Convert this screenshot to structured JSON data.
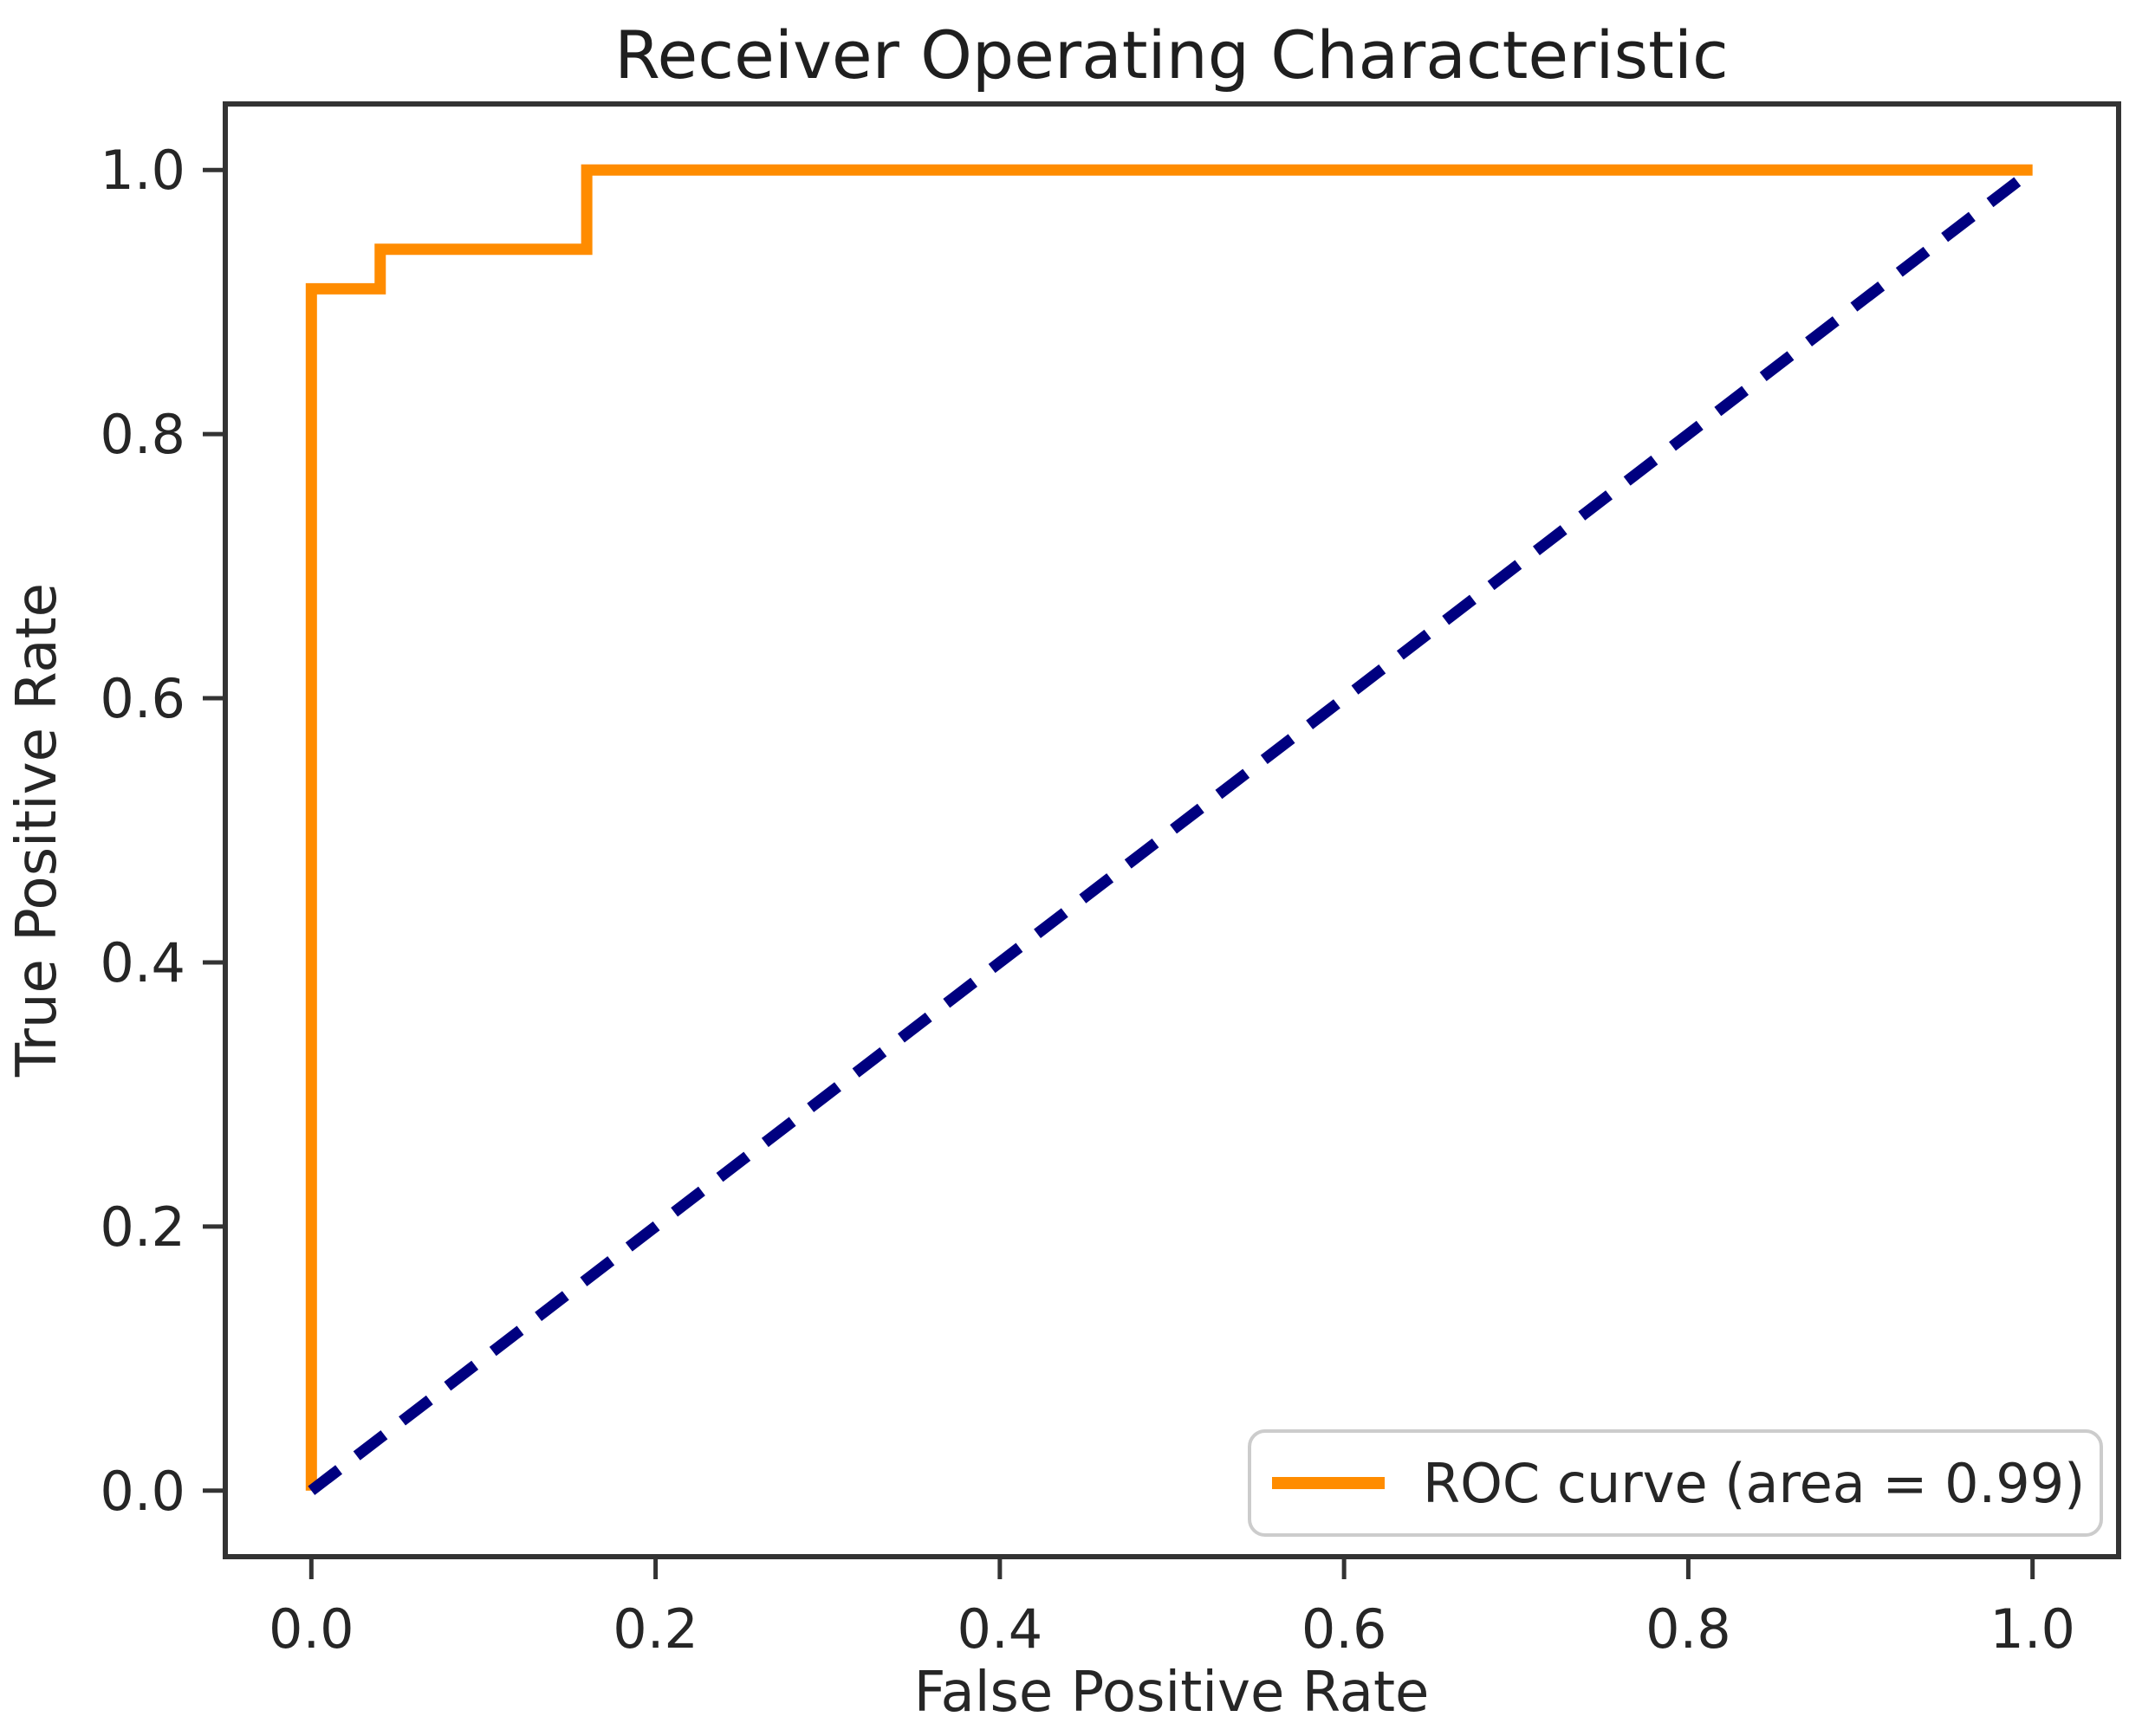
{
  "figure": {
    "title": "Receiver Operating Characteristic",
    "xlabel": "False Positive Rate",
    "ylabel": "True Positive Rate"
  },
  "legend": {
    "position": "lower right",
    "entries": [
      {
        "label": "ROC curve (area = 0.99)",
        "color": "#FF8C00",
        "line_style": "solid"
      }
    ]
  },
  "colors": {
    "roc_curve": "#FF8C00",
    "chance_diagonal": "#000080",
    "spine": "#333333",
    "text": "#262626",
    "legend_border": "#cccccc",
    "background": "#ffffff"
  },
  "chart_data": {
    "type": "line",
    "title": "Receiver Operating Characteristic",
    "xlabel": "False Positive Rate",
    "ylabel": "True Positive Rate",
    "xlim": [
      -0.05,
      1.05
    ],
    "ylim": [
      -0.05,
      1.05
    ],
    "grid": false,
    "legend_position": "lower right",
    "x_ticks": [
      0.0,
      0.2,
      0.4,
      0.6,
      0.8,
      1.0
    ],
    "y_ticks": [
      0.0,
      0.2,
      0.4,
      0.6,
      0.8,
      1.0
    ],
    "x_tick_labels": [
      "0.0",
      "0.2",
      "0.4",
      "0.6",
      "0.8",
      "1.0"
    ],
    "y_tick_labels": [
      "0.0",
      "0.2",
      "0.4",
      "0.6",
      "0.8",
      "1.0"
    ],
    "series": [
      {
        "name": "ROC curve (area = 0.99)",
        "auc": 0.99,
        "color": "#FF8C00",
        "line_style": "solid",
        "x": [
          0.0,
          0.0,
          0.04,
          0.04,
          0.16,
          0.16,
          1.0
        ],
        "y": [
          0.0,
          0.91,
          0.91,
          0.94,
          0.94,
          1.0,
          1.0
        ]
      },
      {
        "name": "chance-diagonal",
        "color": "#000080",
        "line_style": "dashed",
        "x": [
          0.0,
          1.0
        ],
        "y": [
          0.0,
          1.0
        ]
      }
    ]
  }
}
